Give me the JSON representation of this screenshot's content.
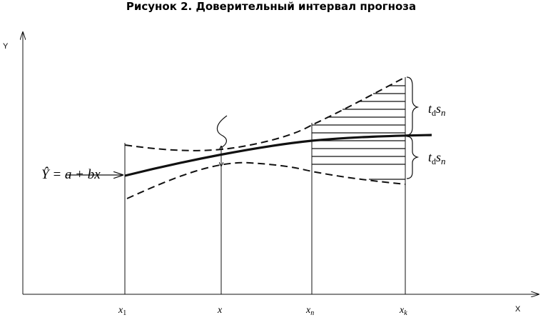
{
  "title": "Рисунок 2. Доверительный интервал прогноза",
  "axes": {
    "y_label": "Y",
    "x_label": "X"
  },
  "x_marks": [
    {
      "base": "x",
      "sub": "1"
    },
    {
      "base": "x"
    },
    {
      "base": "x",
      "sub": "n"
    },
    {
      "base": "x",
      "sub": "k"
    }
  ],
  "equation": "Ŷ = a + bx",
  "interval_labels": [
    {
      "base": "t",
      "sub": "d",
      "tail": "s",
      "tail_sub": "n"
    },
    {
      "base": "t",
      "sub": "d",
      "tail": "s",
      "tail_sub": "n"
    }
  ]
}
